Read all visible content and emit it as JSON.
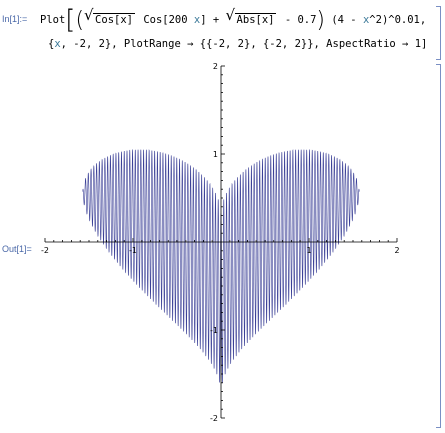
{
  "cells": {
    "input_label": "In[1]:=",
    "output_label": "Out[1]="
  },
  "code": {
    "plot_fn": "Plot",
    "sqrt1_arg": "Cos[x]",
    "cos_term": "Cos[200",
    "x_var": "x",
    "close_bracket": "]",
    "plus": "+",
    "sqrt2_arg": "Abs[x]",
    "minus_const": "- 0.7",
    "factor_open": "(4 -",
    "factor_rest": "^2)^0.01,",
    "range_open": "{",
    "range_rest": ", -2, 2}, PlotRange",
    "arrow1": "→",
    "plot_range": "{{-2, 2}, {-2, 2}}, AspectRatio",
    "arrow2": "→",
    "aspect": "1]"
  },
  "chart_data": {
    "type": "line",
    "title": "",
    "xlabel": "",
    "ylabel": "",
    "function": "(Sqrt[Cos[x]] Cos[200 x] + Sqrt[Abs[x]] - 0.7) (4 - x^2)^0.01",
    "x_range": [
      -2,
      2
    ],
    "xlim": [
      -2,
      2
    ],
    "ylim": [
      -2,
      2
    ],
    "x_ticks": [
      -2,
      -1,
      1,
      2
    ],
    "y_ticks": [
      -2,
      -1,
      1,
      2
    ],
    "x_tick_labels": [
      "-2",
      "-1",
      "1",
      "2"
    ],
    "y_tick_labels": [
      "-2",
      "-1",
      "1",
      "2"
    ],
    "line_color": "#3a3f96",
    "grid": false,
    "legend": "none"
  }
}
